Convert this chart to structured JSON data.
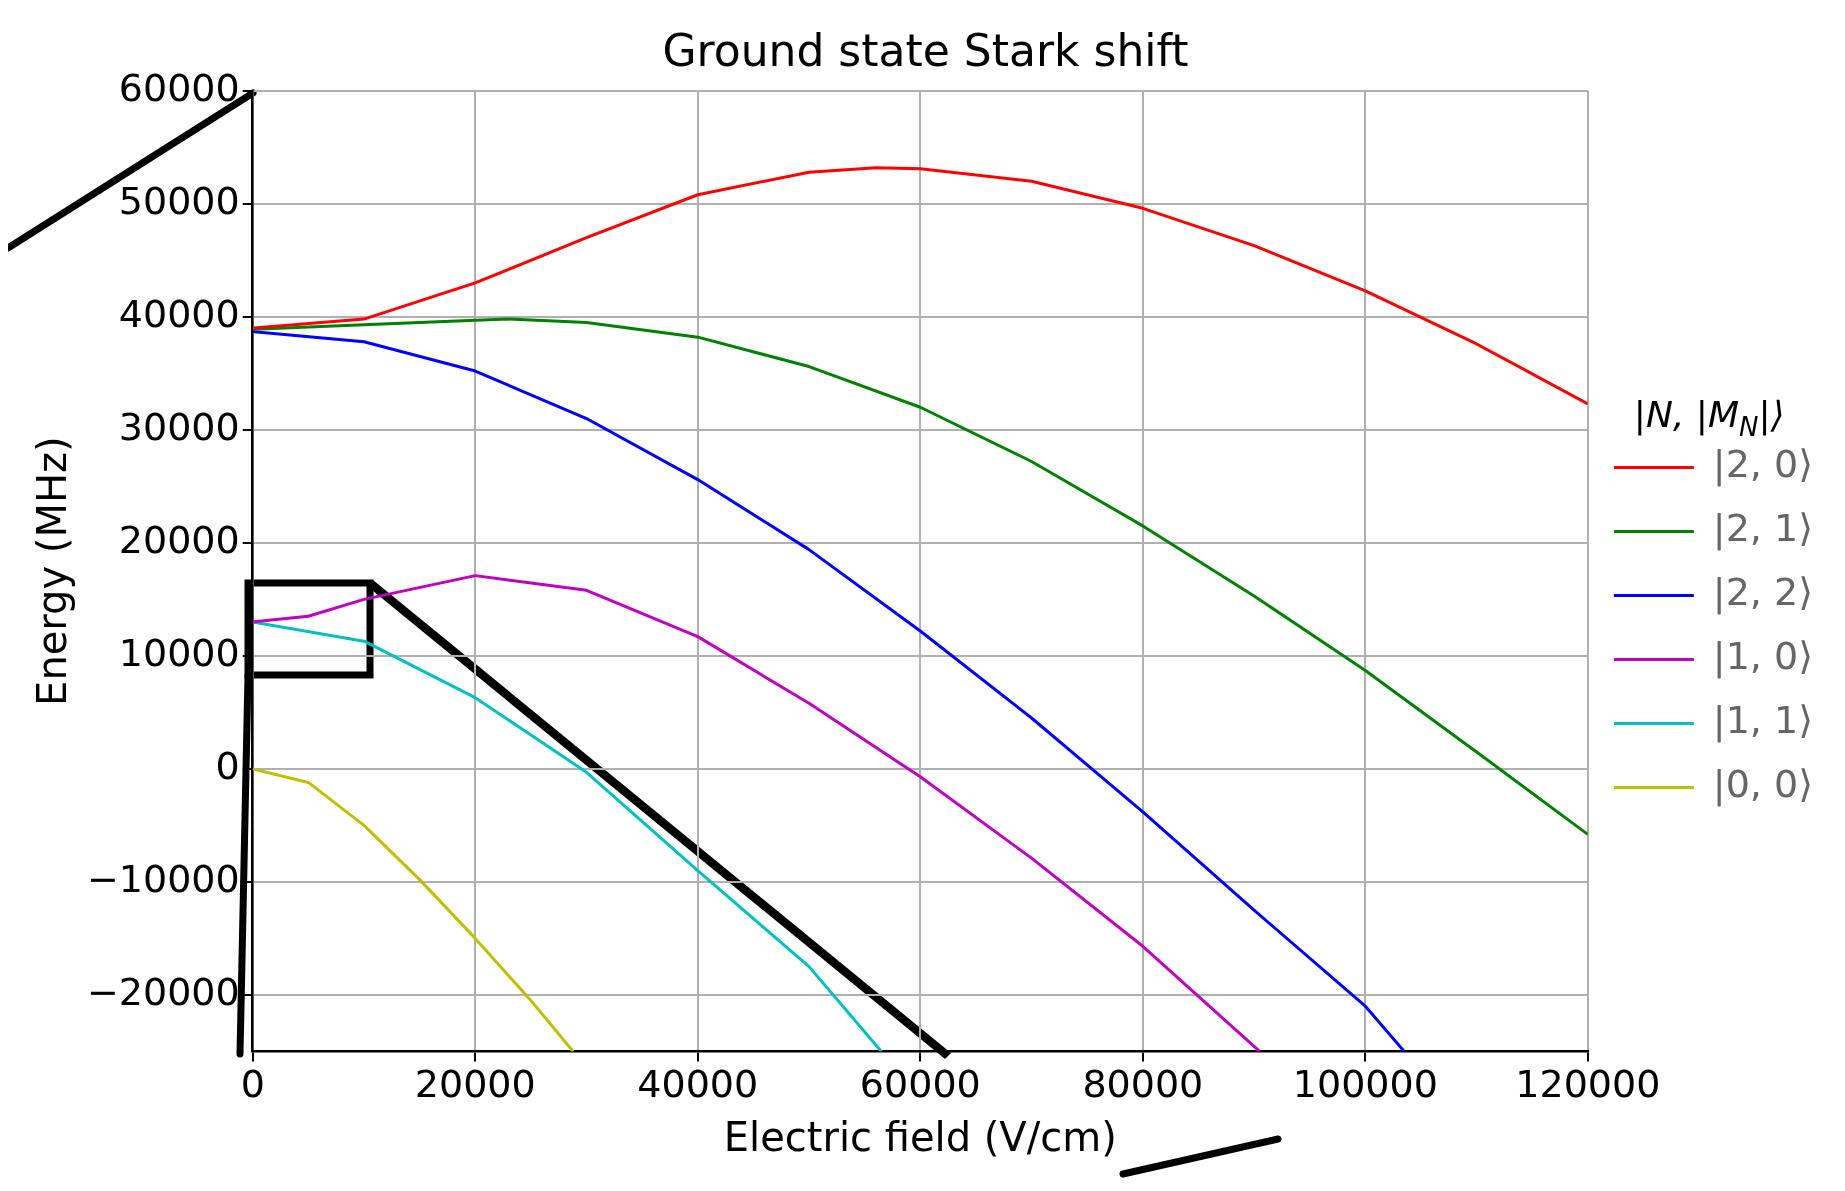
{
  "chart_data": {
    "type": "line",
    "title": "Ground state Stark shift",
    "xlabel": "Electric field (V/cm)",
    "ylabel": "Energy (MHz)",
    "legend_title": "|N, |M$_{N}$|⟩",
    "xlim": [
      0,
      120000
    ],
    "xticks": [
      0,
      20000,
      40000,
      60000,
      80000,
      100000,
      120000
    ],
    "ylim": [
      -25000,
      60000
    ],
    "yticks": [
      {
        "value": -20000,
        "label": "−20000"
      },
      {
        "value": -10000,
        "label": "−10000"
      },
      0,
      10000,
      20000,
      30000,
      40000,
      50000,
      60000
    ],
    "grid": true,
    "legend": "right",
    "marker": "none",
    "line_style": "solid",
    "series": [
      {
        "name": "|2, 0⟩",
        "color": "#ff0000",
        "x": [
          0,
          10000,
          20000,
          30000,
          40000,
          50000,
          56000,
          60000,
          70000,
          80000,
          90000,
          100000,
          110000,
          120000
        ],
        "values": [
          39000,
          39800,
          43000,
          47000,
          50800,
          52800,
          53200,
          53100,
          52000,
          49600,
          46300,
          42300,
          37600,
          32300
        ]
      },
      {
        "name": "|2, 1⟩",
        "color": "#008000",
        "x": [
          0,
          10000,
          20000,
          23000,
          30000,
          40000,
          50000,
          60000,
          70000,
          80000,
          90000,
          100000,
          110000,
          120000
        ],
        "values": [
          38900,
          39300,
          39700,
          39800,
          39500,
          38200,
          35600,
          32000,
          27200,
          21500,
          15300,
          8700,
          1500,
          -5800
        ]
      },
      {
        "name": "|2, 2⟩",
        "color": "#0000ff",
        "x": [
          0,
          10000,
          20000,
          30000,
          40000,
          50000,
          60000,
          70000,
          80000,
          90000,
          100000,
          103500
        ],
        "values": [
          38700,
          37800,
          35200,
          31000,
          25600,
          19400,
          12200,
          4500,
          -3800,
          -12500,
          -21000,
          -25000
        ]
      },
      {
        "name": "|1, 0⟩",
        "color": "#bf00bf",
        "x": [
          0,
          5000,
          10000,
          20000,
          30000,
          40000,
          50000,
          60000,
          70000,
          80000,
          90500
        ],
        "values": [
          13000,
          13500,
          15000,
          17100,
          15800,
          11700,
          5800,
          -700,
          -7900,
          -15700,
          -25000
        ]
      },
      {
        "name": "|1, 1⟩",
        "color": "#00bfbf",
        "x": [
          0,
          10000,
          20000,
          30000,
          40000,
          50000,
          56500
        ],
        "values": [
          13000,
          11300,
          6300,
          -300,
          -9000,
          -17500,
          -25000
        ]
      },
      {
        "name": "|0, 0⟩",
        "color": "#bfbf00",
        "x": [
          0,
          5000,
          10000,
          15000,
          20000,
          25000,
          28800
        ],
        "values": [
          0,
          -1200,
          -5000,
          -9800,
          -15000,
          -20500,
          -25000
        ]
      }
    ]
  }
}
